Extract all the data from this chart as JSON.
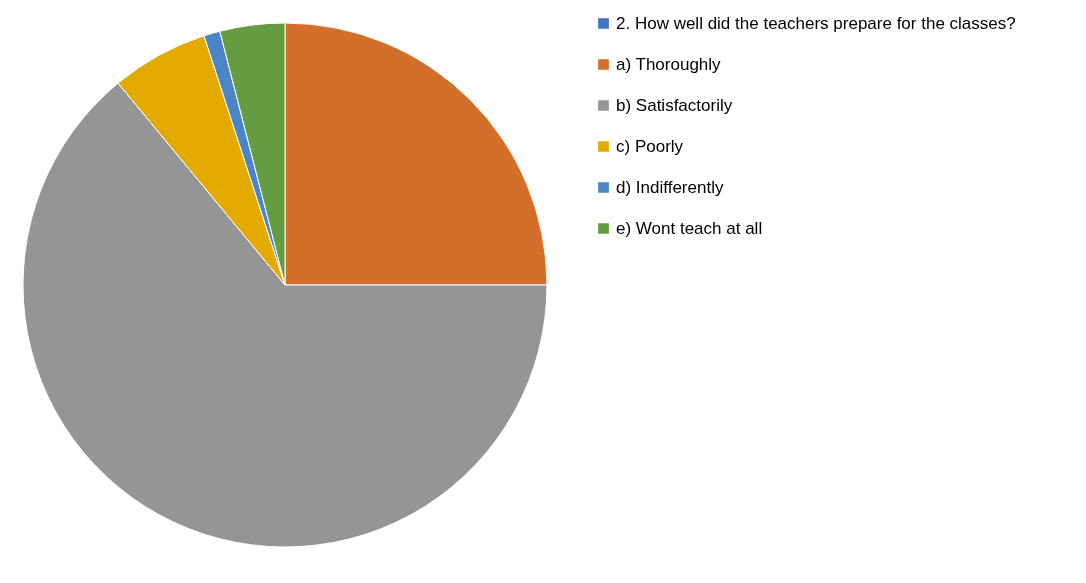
{
  "chart_data": {
    "type": "pie",
    "categories": [
      "2. How well did the teachers prepare for the classes?",
      "a) Thoroughly",
      "b)  Satisfactorily",
      "c)  Poorly",
      "d)  Indifferently",
      "e)  Wont teach at all"
    ],
    "values": [
      0,
      25,
      64,
      6,
      1,
      4
    ],
    "colors": [
      "#4472c4",
      "#d46f2b",
      "#959595",
      "#e3aa00",
      "#4a86c5",
      "#659c41"
    ],
    "legend": "right"
  }
}
